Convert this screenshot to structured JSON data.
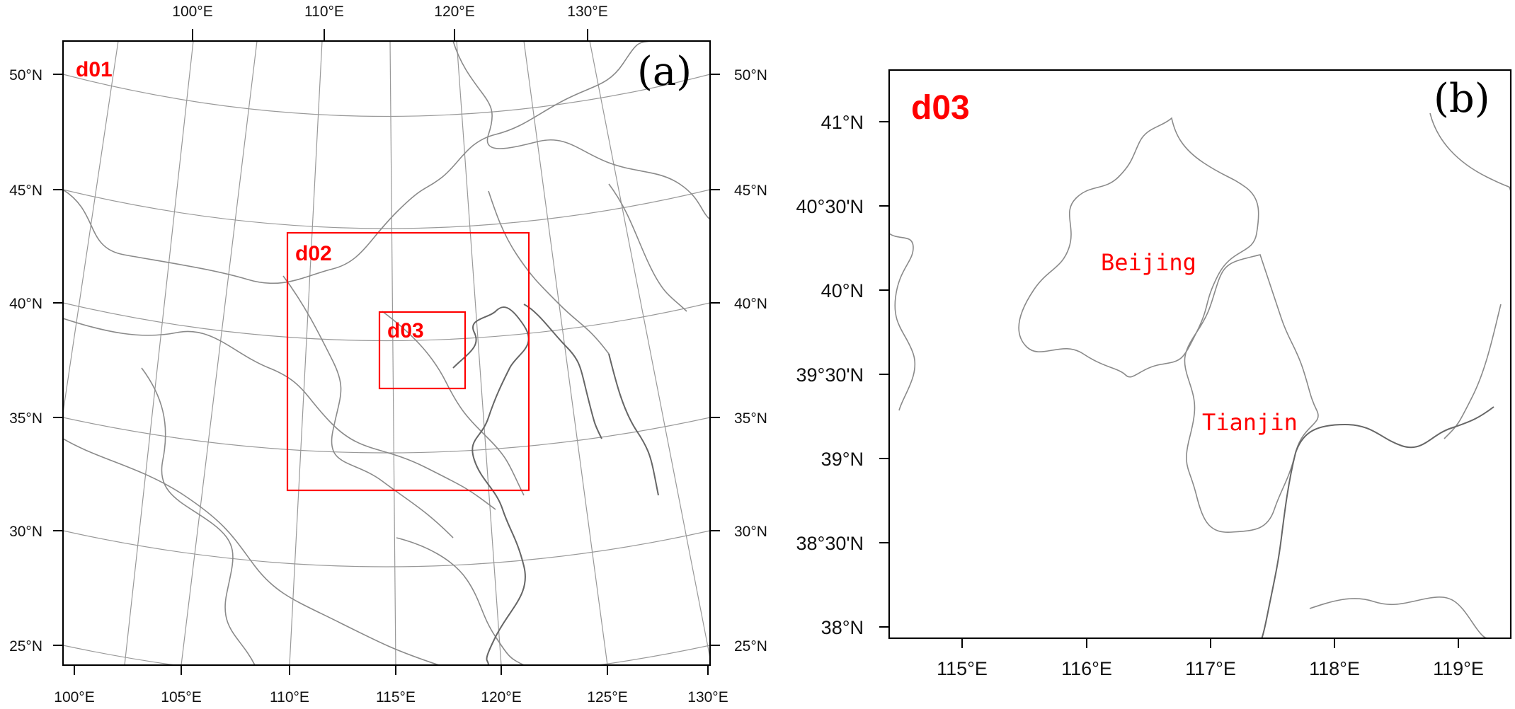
{
  "panel_a": {
    "label": "(a)",
    "top_lon_labels": [
      "100°E",
      "110°E",
      "120°E",
      "130°E"
    ],
    "bottom_lon_labels": [
      "100°E",
      "105°E",
      "110°E",
      "115°E",
      "120°E",
      "125°E",
      "130°E"
    ],
    "lat_labels": [
      "50°N",
      "45°N",
      "40°N",
      "35°N",
      "30°N",
      "25°N"
    ],
    "domains": [
      "d01",
      "d02",
      "d03"
    ]
  },
  "panel_b": {
    "label": "(b)",
    "domain_label": "d03",
    "lat_labels": [
      "41°N",
      "40°30'N",
      "40°N",
      "39°30'N",
      "39°N",
      "38°30'N",
      "38°N"
    ],
    "lon_labels": [
      "115°E",
      "116°E",
      "117°E",
      "118°E",
      "119°E"
    ],
    "cities": [
      "Beijing",
      "Tianjin"
    ]
  },
  "colors": {
    "domain_box": "#ff0000",
    "frame": "#000000",
    "graticule": "#999999",
    "border": "#8a8a8a"
  }
}
